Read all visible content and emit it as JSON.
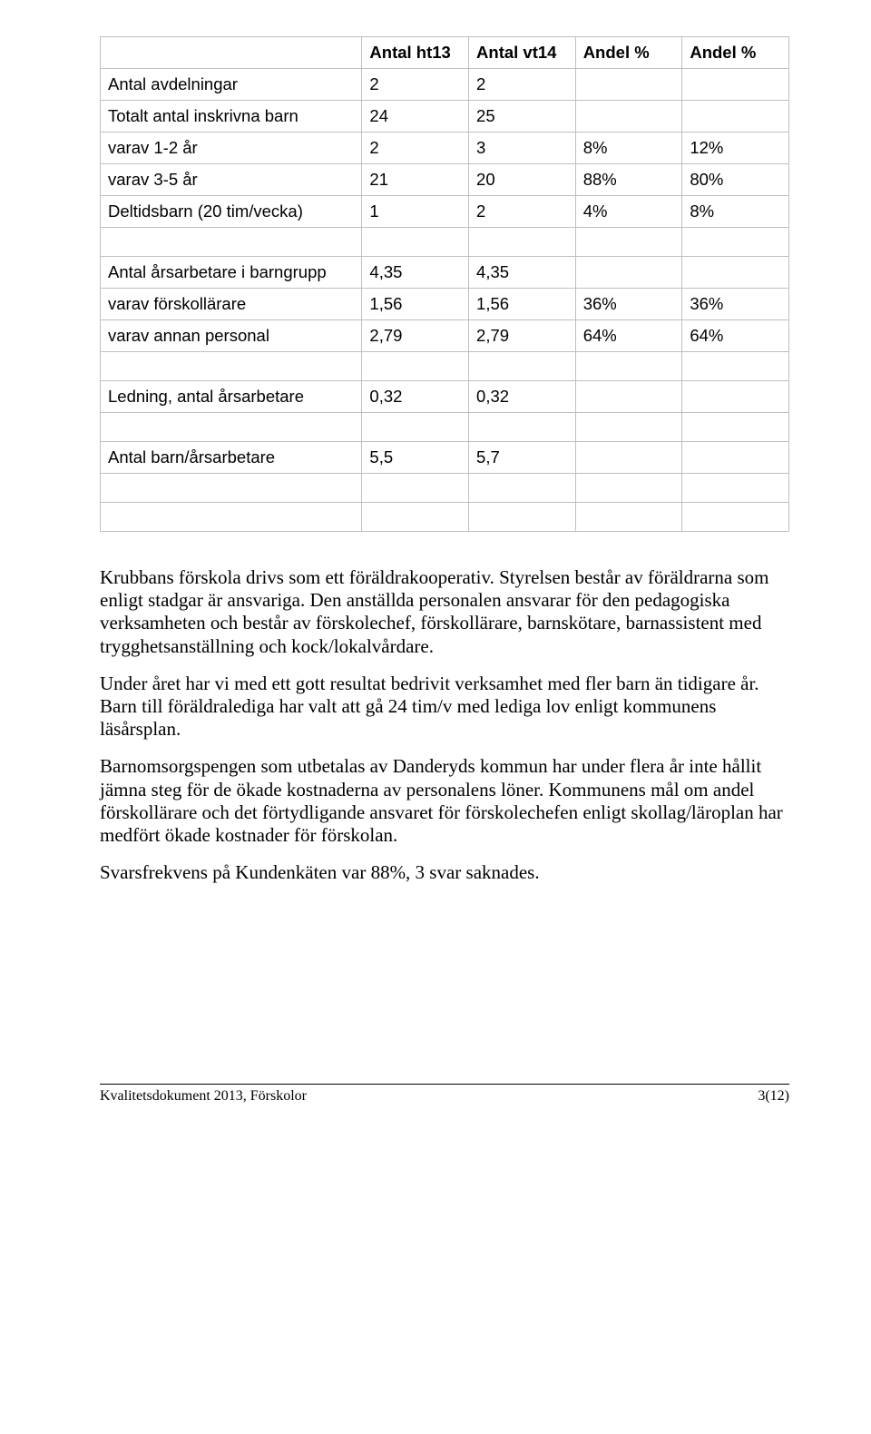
{
  "table": {
    "columns": [
      "",
      "Antal ht13",
      "Antal vt14",
      "Andel %",
      "Andel %"
    ],
    "rows": [
      {
        "label": "Antal avdelningar",
        "indent": false,
        "c": [
          "2",
          "2",
          "",
          ""
        ]
      },
      {
        "label": "Totalt antal inskrivna barn",
        "indent": false,
        "c": [
          "24",
          "25",
          "",
          ""
        ]
      },
      {
        "label": "varav 1-2 år",
        "indent": true,
        "c": [
          "2",
          "3",
          "8%",
          "12%"
        ]
      },
      {
        "label": "varav 3-5 år",
        "indent": true,
        "c": [
          "21",
          "20",
          "88%",
          "80%"
        ]
      },
      {
        "label": "Deltidsbarn (20 tim/vecka)",
        "indent": false,
        "c": [
          "1",
          "2",
          "4%",
          "8%"
        ]
      },
      {
        "label": "",
        "indent": false,
        "c": [
          "",
          "",
          "",
          ""
        ]
      },
      {
        "label": "Antal årsarbetare i barngrupp",
        "indent": false,
        "c": [
          "4,35",
          "4,35",
          "",
          ""
        ]
      },
      {
        "label": "varav förskollärare",
        "indent": true,
        "c": [
          "1,56",
          "1,56",
          "36%",
          "36%"
        ]
      },
      {
        "label": "varav annan personal",
        "indent": true,
        "c": [
          "2,79",
          "2,79",
          "64%",
          "64%"
        ]
      },
      {
        "label": "",
        "indent": false,
        "c": [
          "",
          "",
          "",
          ""
        ]
      },
      {
        "label": "Ledning, antal årsarbetare",
        "indent": false,
        "c": [
          "0,32",
          "0,32",
          "",
          ""
        ]
      },
      {
        "label": "",
        "indent": false,
        "c": [
          "",
          "",
          "",
          ""
        ]
      },
      {
        "label": "Antal barn/årsarbetare",
        "indent": false,
        "c": [
          "5,5",
          "5,7",
          "",
          ""
        ]
      },
      {
        "label": "",
        "indent": false,
        "c": [
          "",
          "",
          "",
          ""
        ]
      },
      {
        "label": "",
        "indent": false,
        "c": [
          "",
          "",
          "",
          ""
        ]
      }
    ]
  },
  "paragraphs": [
    "Krubbans förskola drivs som ett föräldrakooperativ. Styrelsen består av föräldrarna som enligt stadgar är ansvariga. Den anställda personalen ansvarar för den pedagogiska verksamheten och består av förskolechef, förskollärare, barnskötare, barnassistent med trygghetsanställning och kock/lokalvårdare.",
    "Under året har vi med ett gott resultat bedrivit verksamhet med fler barn än tidigare år. Barn till föräldralediga har valt att gå 24 tim/v med lediga lov enligt kommunens läsårsplan.",
    "Barnomsorgspengen som utbetalas av Danderyds kommun har under flera år inte hållit jämna steg för de ökade kostnaderna av personalens löner. Kommunens mål om andel förskollärare och det förtydligande ansvaret för förskolechefen enligt skollag/läroplan har medfört ökade kostnader för förskolan.",
    "Svarsfrekvens på Kundenkäten var 88%, 3 svar saknades."
  ],
  "footer": {
    "left": "Kvalitetsdokument 2013, Förskolor",
    "right": "3(12)"
  }
}
